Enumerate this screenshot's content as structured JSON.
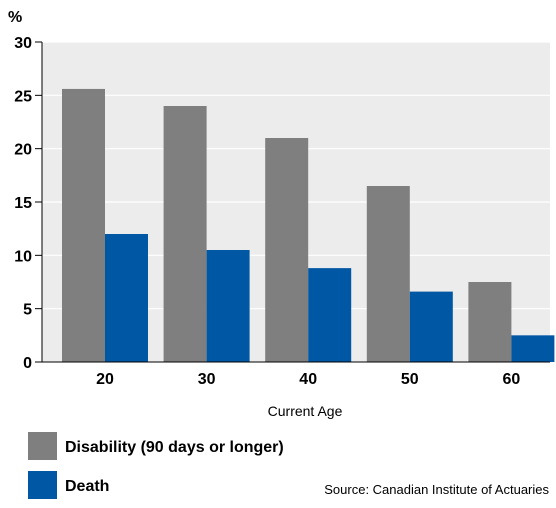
{
  "chart_data": {
    "type": "bar",
    "ylabel": "%",
    "xlabel": "Current Age",
    "categories": [
      "20",
      "30",
      "40",
      "50",
      "60"
    ],
    "series": [
      {
        "name": "Disability (90 days or longer)",
        "color": "#7f7f7f",
        "values": [
          25.6,
          24.0,
          21.0,
          16.5,
          7.5
        ]
      },
      {
        "name": "Death",
        "color": "#0057a4",
        "values": [
          12.0,
          10.5,
          8.8,
          6.6,
          2.5
        ]
      }
    ],
    "ylim": [
      0,
      30
    ],
    "yticks": [
      0,
      5,
      10,
      15,
      20,
      25,
      30
    ],
    "grid": true,
    "legend_position": "bottom-left"
  },
  "source": "Source: Canadian Institute of Actuaries"
}
